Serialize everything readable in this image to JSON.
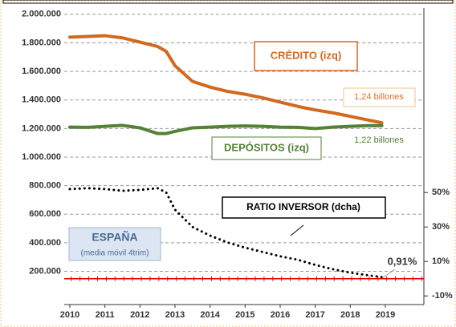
{
  "chart_data": {
    "type": "line",
    "x": [
      2010,
      2010.5,
      2011,
      2011.5,
      2012,
      2012.5,
      2012.75,
      2013,
      2013.5,
      2014,
      2014.5,
      2015,
      2015.5,
      2016,
      2016.5,
      2017,
      2017.5,
      2018,
      2018.5,
      2018.9
    ],
    "xlim": [
      2009.84,
      2020.1
    ],
    "xticks": [
      2010,
      2011,
      2012,
      2013,
      2014,
      2015,
      2016,
      2017,
      2018,
      2019
    ],
    "ylim": [
      -33000,
      2044000
    ],
    "yticks": [
      {
        "value": 200000,
        "label": "200.000"
      },
      {
        "value": 400000,
        "label": "400.000"
      },
      {
        "value": 600000,
        "label": "600.000"
      },
      {
        "value": 800000,
        "label": "800.000"
      },
      {
        "value": 1000000,
        "label": "1.000.000"
      },
      {
        "value": 1200000,
        "label": "1.200.000"
      },
      {
        "value": 1400000,
        "label": "1.400.000"
      },
      {
        "value": 1600000,
        "label": "1.600.000"
      },
      {
        "value": 1800000,
        "label": "1.800.000"
      },
      {
        "value": 2000000,
        "label": "2.000.000"
      }
    ],
    "y2lim": [
      -15,
      157
    ],
    "y2ticks": [
      {
        "value": -10,
        "label": "-10%"
      },
      {
        "value": 10,
        "label": "10%"
      },
      {
        "value": 30,
        "label": "30%"
      },
      {
        "value": 50,
        "label": "50%"
      }
    ],
    "grid": true,
    "reference_line": {
      "value": 0,
      "axis": "y2",
      "color": "#e00000"
    },
    "series": [
      {
        "name": "CRÉDITO (izq)",
        "color": "#d2691e",
        "style": "solid",
        "values": [
          1840000,
          1845000,
          1850000,
          1835000,
          1805000,
          1775000,
          1740000,
          1640000,
          1530000,
          1490000,
          1460000,
          1440000,
          1415000,
          1385000,
          1355000,
          1330000,
          1310000,
          1285000,
          1260000,
          1240000
        ],
        "value_labels": [
          null,
          null,
          null,
          null,
          null,
          null,
          null,
          null,
          null,
          null,
          null,
          null,
          null,
          null,
          null,
          null,
          null,
          null,
          null,
          "1,24 billones"
        ]
      },
      {
        "name": "DEPÓSITOS (izq)",
        "color": "#548235",
        "style": "solid",
        "values": [
          1210000,
          1208000,
          1215000,
          1222000,
          1205000,
          1165000,
          1165000,
          1180000,
          1205000,
          1210000,
          1215000,
          1218000,
          1215000,
          1210000,
          1208000,
          1200000,
          1210000,
          1215000,
          1220000,
          1220000
        ],
        "value_labels": [
          null,
          null,
          null,
          null,
          null,
          null,
          null,
          null,
          null,
          null,
          null,
          null,
          null,
          null,
          null,
          null,
          null,
          null,
          null,
          "1,22 billones"
        ]
      },
      {
        "name": "RATIO INVERSOR (dcha)",
        "color": "#000000",
        "style": "dotted",
        "axis": "y2",
        "values": [
          52,
          52.5,
          52,
          51,
          51.5,
          52.5,
          50,
          40,
          30,
          25,
          21,
          18,
          15.5,
          13,
          11,
          8,
          5.5,
          3.5,
          2,
          0.91
        ],
        "value_labels": [
          null,
          null,
          null,
          null,
          null,
          null,
          null,
          null,
          null,
          null,
          null,
          null,
          null,
          null,
          null,
          null,
          null,
          null,
          null,
          "0,91%"
        ]
      }
    ],
    "annotations": [
      "ESPAÑA",
      "(media móvil 4trim)"
    ]
  }
}
